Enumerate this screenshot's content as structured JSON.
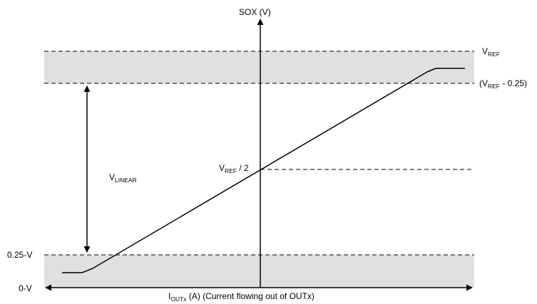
{
  "diagram": {
    "y_axis_label": "SOX (V)",
    "x_axis_label": {
      "main": "I",
      "subscript": "OUTx",
      "rest": " (A) (Current flowing out of OUTx)"
    },
    "levels": {
      "vref": {
        "main": "V",
        "subscript": "REF",
        "rest": ""
      },
      "vref_minus": {
        "prefix": "(V",
        "subscript": "REF",
        "rest": " - 0.25)"
      },
      "vref_half": {
        "main": "V",
        "subscript": "REF",
        "rest": " / 2"
      },
      "low": "0.25-V",
      "zero": "0-V"
    },
    "span_label": {
      "main": "V",
      "subscript": "LINEAR"
    },
    "colors": {
      "band_fill": "#e0e0e0",
      "line": "#000000",
      "dash": "#000000"
    }
  }
}
